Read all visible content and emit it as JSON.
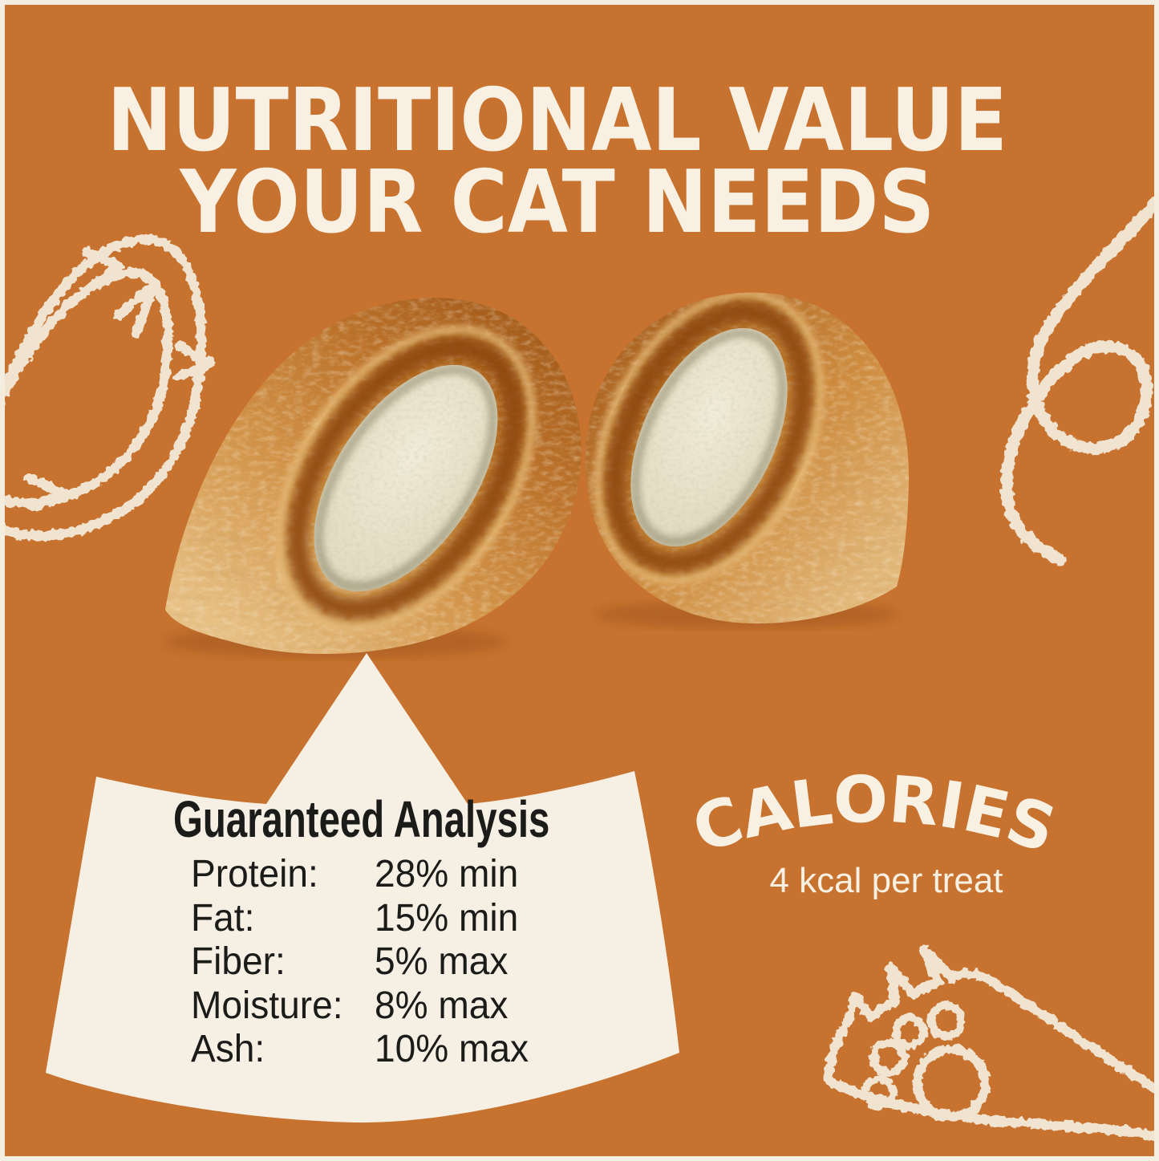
{
  "page": {
    "kind": "product-infographic",
    "subject": "cat treat nutrition"
  },
  "colors": {
    "background": "#C7722F",
    "frame": "#F4EDE1",
    "title_text": "#F8F1E3",
    "panel": "#F6F0E4",
    "ink": "#1B1B1A",
    "doodle": "#F4EDDE"
  },
  "title": {
    "line1": "NUTRITIONAL VALUE",
    "line2": "YOUR CAT NEEDS"
  },
  "analysis": {
    "heading": "Guaranteed Analysis",
    "rows": [
      {
        "label": "Protein:",
        "value": "28% min"
      },
      {
        "label": "Fat:",
        "value": "15% min"
      },
      {
        "label": "Fiber:",
        "value": "5% max"
      },
      {
        "label": "Moisture:",
        "value": "8% max"
      },
      {
        "label": "Ash:",
        "value": "10% max"
      }
    ]
  },
  "calories": {
    "heading": "CALORIES",
    "subtext": "4 kcal per treat"
  },
  "decorations": {
    "top_left": "fish-doodle",
    "right": "swirl-doodle",
    "bottom_right": "paw-doodle"
  },
  "photo": {
    "subject": "two crunchy cat treats split open showing creamy filling"
  }
}
